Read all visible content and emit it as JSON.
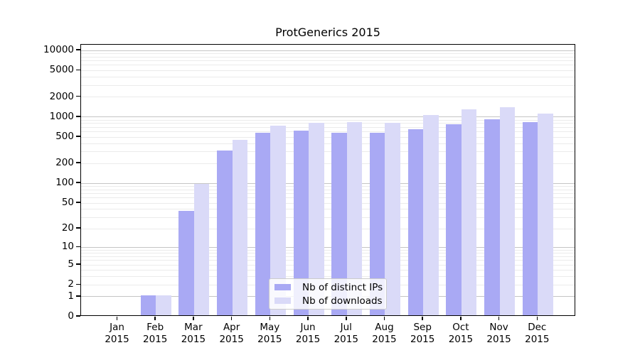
{
  "title": "ProtGenerics 2015",
  "colors": {
    "bar_dark": "#a9a9f4",
    "bar_light": "#dadaf8",
    "grid_major": "#c5c5c5",
    "grid_minor": "#ebebeb",
    "axis": "#000000"
  },
  "legend": {
    "items": [
      {
        "label": "Nb of distinct IPs",
        "color": "#a9a9f4"
      },
      {
        "label": "Nb of downloads",
        "color": "#dadaf8"
      }
    ]
  },
  "y_axis": {
    "tick_labels": [
      "10000",
      "5000",
      "2000",
      "1000",
      "500",
      "200",
      "100",
      "50",
      "20",
      "10",
      "5",
      "2",
      "1",
      "0"
    ]
  },
  "x_axis": {
    "ticks": [
      {
        "month": "Jan",
        "year": "2015"
      },
      {
        "month": "Feb",
        "year": "2015"
      },
      {
        "month": "Mar",
        "year": "2015"
      },
      {
        "month": "Apr",
        "year": "2015"
      },
      {
        "month": "May",
        "year": "2015"
      },
      {
        "month": "Jun",
        "year": "2015"
      },
      {
        "month": "Jul",
        "year": "2015"
      },
      {
        "month": "Aug",
        "year": "2015"
      },
      {
        "month": "Sep",
        "year": "2015"
      },
      {
        "month": "Oct",
        "year": "2015"
      },
      {
        "month": "Nov",
        "year": "2015"
      },
      {
        "month": "Dec",
        "year": "2015"
      }
    ]
  },
  "chart_data": {
    "type": "bar",
    "title": "ProtGenerics 2015",
    "categories": [
      "Jan 2015",
      "Feb 2015",
      "Mar 2015",
      "Apr 2015",
      "May 2015",
      "Jun 2015",
      "Jul 2015",
      "Aug 2015",
      "Sep 2015",
      "Oct 2015",
      "Nov 2015",
      "Dec 2015"
    ],
    "series": [
      {
        "name": "Nb of distinct IPs",
        "color": "#a9a9f4",
        "values": [
          0,
          1,
          36,
          300,
          555,
          590,
          555,
          555,
          630,
          750,
          890,
          805
        ]
      },
      {
        "name": "Nb of downloads",
        "color": "#dadaf8",
        "values": [
          0,
          1,
          93,
          430,
          700,
          785,
          790,
          780,
          1020,
          1240,
          1330,
          1070
        ]
      }
    ],
    "xlabel": "",
    "ylabel": "",
    "y_scale": "log10(1+x)",
    "ylim": [
      0,
      10000
    ],
    "y_tick_values": [
      10000,
      5000,
      2000,
      1000,
      500,
      200,
      100,
      50,
      20,
      10,
      5,
      2,
      1,
      0
    ],
    "grid": "horizontal; major lines at powers of 10, faint minor log lines",
    "legend_position": "inside lower center"
  }
}
